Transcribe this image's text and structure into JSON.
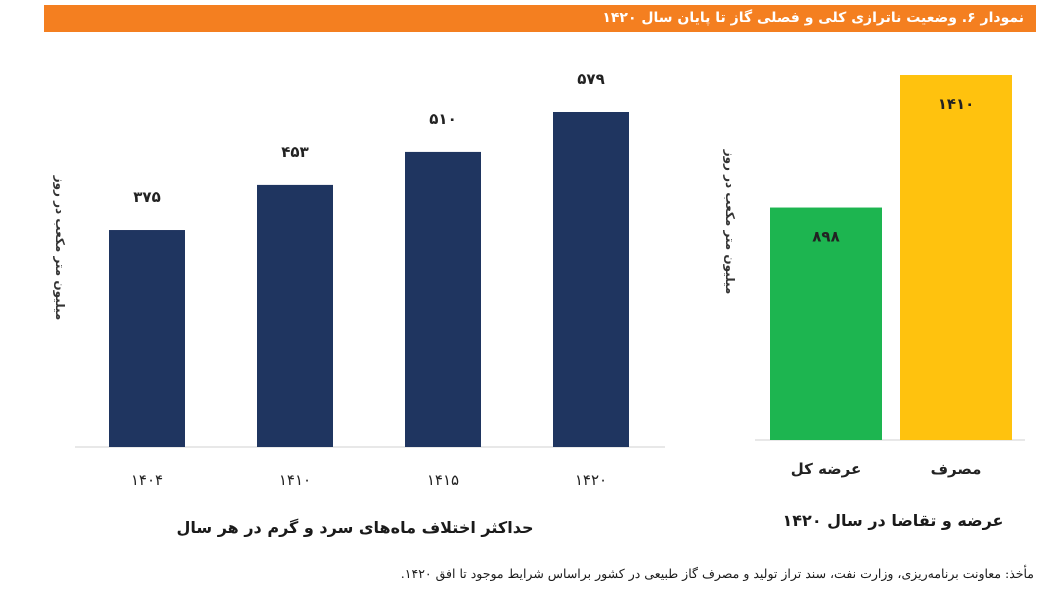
{
  "header": {
    "title": "نمودار ۶. وضعیت ناترازی کلی و فصلی گاز تا پایان سال ۱۴۲۰"
  },
  "colors": {
    "header_bg": "#f47f20",
    "navy": "#1f3560",
    "green": "#1db550",
    "gold": "#ffc20e"
  },
  "chart_data": [
    {
      "type": "bar",
      "title": "حداکثر اختلاف ماه‌های سرد و گرم در هر سال",
      "ylabel": "میلیون متر مکعب در روز",
      "xlabel": "",
      "categories": [
        "۱۴۰۴",
        "۱۴۱۰",
        "۱۴۱۵",
        "۱۴۲۰"
      ],
      "values": [
        375,
        453,
        510,
        579
      ],
      "value_labels": [
        "۳۷۵",
        "۴۵۳",
        "۵۱۰",
        "۵۷۹"
      ],
      "ylim": [
        0,
        600
      ],
      "grid": false,
      "legend": "none"
    },
    {
      "type": "bar",
      "title": "عرضه و تقاضا در سال ۱۴۲۰",
      "ylabel": "میلیون متر مکعب در روز",
      "xlabel": "",
      "categories": [
        "عرضه کل",
        "مصرف"
      ],
      "values": [
        898,
        1410
      ],
      "value_labels": [
        "۸۹۸",
        "۱۴۱۰"
      ],
      "ylim": [
        0,
        1410
      ],
      "grid": false,
      "legend": "none"
    }
  ],
  "source": "مأخذ: معاونت برنامه‌ریزی، وزارت نفت، سند تراز تولید و مصرف گاز طبیعی در کشور براساس شرایط موجود تا افق ۱۴۲۰."
}
